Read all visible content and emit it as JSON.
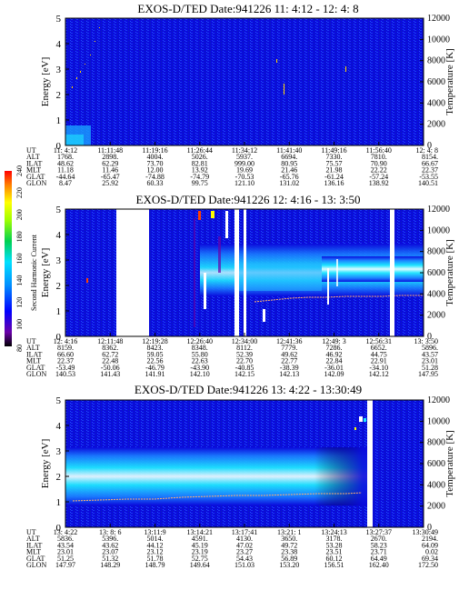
{
  "colors": {
    "background": "#0a0adc",
    "cyan_band": "#1ee6ff",
    "white_band": "#e8fbff",
    "trace": "#ffd27a",
    "gap": "#ffffff"
  },
  "colorbar": {
    "label": "Second Harmonic Current",
    "ticks": [
      "240",
      "220",
      "200",
      "180",
      "160",
      "140",
      "120",
      "100",
      "80"
    ]
  },
  "panels": [
    {
      "title": "EXOS-D/TED   Date:941226  11: 4:12 - 12: 4: 8",
      "ylabel": "Energy [eV]",
      "y2label": "Temperature [K]",
      "yticks": [
        "0",
        "1",
        "2",
        "3",
        "4",
        "5"
      ],
      "y2ticks": [
        "0",
        "2000",
        "4000",
        "6000",
        "8000",
        "10000",
        "12000"
      ],
      "rowlabels": [
        "UT",
        "ALT",
        "ILAT",
        "MLT",
        "GLAT",
        "GLON"
      ],
      "columns": [
        [
          "11: 4:12",
          "1768.",
          "48.62",
          "11.18",
          "-44.64",
          "8.47"
        ],
        [
          "11:11:48",
          "2898.",
          "62.29",
          "11.46",
          "-65.47",
          "25.92"
        ],
        [
          "11:19:16",
          "4004.",
          "73.70",
          "12.00",
          "-74.88",
          "60.33"
        ],
        [
          "11:26:44",
          "5026.",
          "82.81",
          "13.92",
          "-74.79",
          "99.75"
        ],
        [
          "11:34:12",
          "5937.",
          "999.00",
          "19.69",
          "-70.53",
          "121.10"
        ],
        [
          "11:41:40",
          "6694.",
          "80.95",
          "21.46",
          "-65.76",
          "131.02"
        ],
        [
          "11:49:16",
          "7330.",
          "75.57",
          "21.98",
          "-61.24",
          "136.16"
        ],
        [
          "11:56:40",
          "7810.",
          "70.90",
          "22.22",
          "-57.24",
          "138.92"
        ],
        [
          "12: 4: 8",
          "8154.",
          "66.67",
          "22.37",
          "-53.55",
          "140.51"
        ]
      ]
    },
    {
      "title": "EXOS-D/TED   Date:941226  12: 4:16 - 13: 3:50",
      "ylabel": "Energy [eV]",
      "y2label": "Temperature [K]",
      "yticks": [
        "0",
        "1",
        "2",
        "3",
        "4",
        "5"
      ],
      "y2ticks": [
        "0",
        "2000",
        "4000",
        "6000",
        "8000",
        "10000",
        "12000"
      ],
      "rowlabels": [
        "UT",
        "ALT",
        "ILAT",
        "MLT",
        "GLAT",
        "GLON"
      ],
      "columns": [
        [
          "12: 4:16",
          "8159.",
          "66.60",
          "22.37",
          "-53.49",
          "140.53"
        ],
        [
          "12:11:48",
          "8362.",
          "62.72",
          "22.48",
          "-50.06",
          "141.43"
        ],
        [
          "12:19:28",
          "8423.",
          "59.05",
          "22.56",
          "-46.79",
          "141.91"
        ],
        [
          "12:26:40",
          "8348.",
          "55.80",
          "22.63",
          "-43.90",
          "142.10"
        ],
        [
          "12:34:00",
          "8112.",
          "52.39",
          "22.70",
          "-40.85",
          "142.15"
        ],
        [
          "12:41:36",
          "7779.",
          "49.62",
          "22.77",
          "-38.39",
          "142.13"
        ],
        [
          "12:49: 3",
          "7286.",
          "46.92",
          "22.84",
          "-36.01",
          "142.09"
        ],
        [
          "12:56:31",
          "6652.",
          "44.75",
          "22.91",
          "-34.10",
          "142.12"
        ],
        [
          "13: 3:50",
          "5896.",
          "43.57",
          "23.01",
          "51.28",
          "147.95"
        ]
      ]
    },
    {
      "title": "EXOS-D/TED   Date:941226  13: 4:22 - 13:30:49",
      "ylabel": "Energy [eV]",
      "y2label": "Temperature [K]",
      "yticks": [
        "0",
        "1",
        "2",
        "3",
        "4",
        "5"
      ],
      "y2ticks": [
        "0",
        "2000",
        "4000",
        "6000",
        "8000",
        "10000",
        "12000"
      ],
      "rowlabels": [
        "UT",
        "ALT",
        "ILAT",
        "MLT",
        "GLAT",
        "GLON"
      ],
      "columns": [
        [
          "13: 4:22",
          "5836.",
          "43.54",
          "23.01",
          "51.25",
          "147.97"
        ],
        [
          "13: 8: 6",
          "5396.",
          "43.62",
          "23.07",
          "51.32",
          "148.29"
        ],
        [
          "13:11:9",
          "5014.",
          "44.12",
          "23.12",
          "51.78",
          "148.79"
        ],
        [
          "13:14:21",
          "4591.",
          "45.19",
          "23.19",
          "52.75",
          "149.64"
        ],
        [
          "13:17:41",
          "4130.",
          "47.02",
          "23.27",
          "54.43",
          "151.03"
        ],
        [
          "13:21: 1",
          "3650.",
          "49.72",
          "23.38",
          "56.89",
          "153.20"
        ],
        [
          "13:24:13",
          "3178.",
          "53.28",
          "23.51",
          "60.12",
          "156.51"
        ],
        [
          "13:27:37",
          "2670.",
          "58.23",
          "23.71",
          "64.49",
          "162.40"
        ],
        [
          "13:30:49",
          "2194.",
          "64.09",
          "0.02",
          "69.34",
          "172.50"
        ]
      ]
    }
  ],
  "chart_data": [
    {
      "type": "heatmap",
      "title": "EXOS-D/TED   Date:941226  11: 4:12 - 12: 4: 8",
      "xlabel": "UT",
      "ylabel": "Energy [eV]",
      "y2label": "Temperature [K]",
      "ylim": [
        0,
        5
      ],
      "y2lim": [
        0,
        12000
      ],
      "x": [
        "11: 4:12",
        "11:11:48",
        "11:19:16",
        "11:26:44",
        "11:34:12",
        "11:41:40",
        "11:49:16",
        "11:56:40",
        "12: 4: 8"
      ],
      "features": [
        {
          "kind": "band",
          "x_from": 0,
          "x_to": 0.5,
          "e_low": 0,
          "e_high": 0.7,
          "level": "cyan"
        },
        {
          "kind": "band",
          "x_from": 0,
          "x_to": 8,
          "e_low": 0,
          "e_high": 5,
          "level": "blue"
        },
        {
          "kind": "speckle",
          "x_from": 0.1,
          "x_to": 1.3,
          "e_low": 2.5,
          "e_high": 5,
          "level": "yellow"
        }
      ]
    },
    {
      "type": "heatmap",
      "title": "EXOS-D/TED   Date:941226  12: 4:16 - 13: 3:50",
      "xlabel": "UT",
      "ylabel": "Energy [eV]",
      "y2label": "Temperature [K]",
      "ylim": [
        0,
        5
      ],
      "y2lim": [
        0,
        12000
      ],
      "x": [
        "12: 4:16",
        "12:11:48",
        "12:19:28",
        "12:26:40",
        "12:34:00",
        "12:41:36",
        "12:49: 3",
        "12:56:31",
        "13: 3:50"
      ],
      "gaps": [
        [
          1.8,
          2.4
        ],
        [
          4.0,
          4.1
        ],
        [
          4.25,
          4.3
        ],
        [
          7.95,
          8.05
        ]
      ],
      "features": [
        {
          "kind": "band",
          "x_from": 3.4,
          "x_to": 9,
          "e_low": 1.3,
          "e_high": 2.7,
          "level": "cyan"
        },
        {
          "kind": "band",
          "x_from": 6.4,
          "x_to": 9,
          "e_low": 1.6,
          "e_high": 2.3,
          "level": "white"
        },
        {
          "kind": "trace",
          "x_from": 5.0,
          "x_to": 9,
          "e": 1.5,
          "temperature_K": 3600
        }
      ]
    },
    {
      "type": "heatmap",
      "title": "EXOS-D/TED   Date:941226  13: 4:22 - 13:30:49",
      "xlabel": "UT",
      "ylabel": "Energy [eV]",
      "y2label": "Temperature [K]",
      "ylim": [
        0,
        5
      ],
      "y2lim": [
        0,
        12000
      ],
      "x": [
        "13: 4:22",
        "13: 8: 6",
        "13:11:9",
        "13:14:21",
        "13:17:41",
        "13:21: 1",
        "13:24:13",
        "13:27:37",
        "13:30:49"
      ],
      "gaps": [
        [
          7.2,
          7.45
        ]
      ],
      "features": [
        {
          "kind": "band",
          "x_from": 0,
          "x_to": 7.2,
          "e_low": 1.2,
          "e_high": 2.8,
          "level": "cyan"
        },
        {
          "kind": "band",
          "x_from": 0,
          "x_to": 7.2,
          "e_low": 1.7,
          "e_high": 2.3,
          "level": "white"
        },
        {
          "kind": "trace",
          "x_from": 0,
          "x_to": 6.8,
          "e": 1.1,
          "temperature_K": 2600
        }
      ]
    }
  ]
}
